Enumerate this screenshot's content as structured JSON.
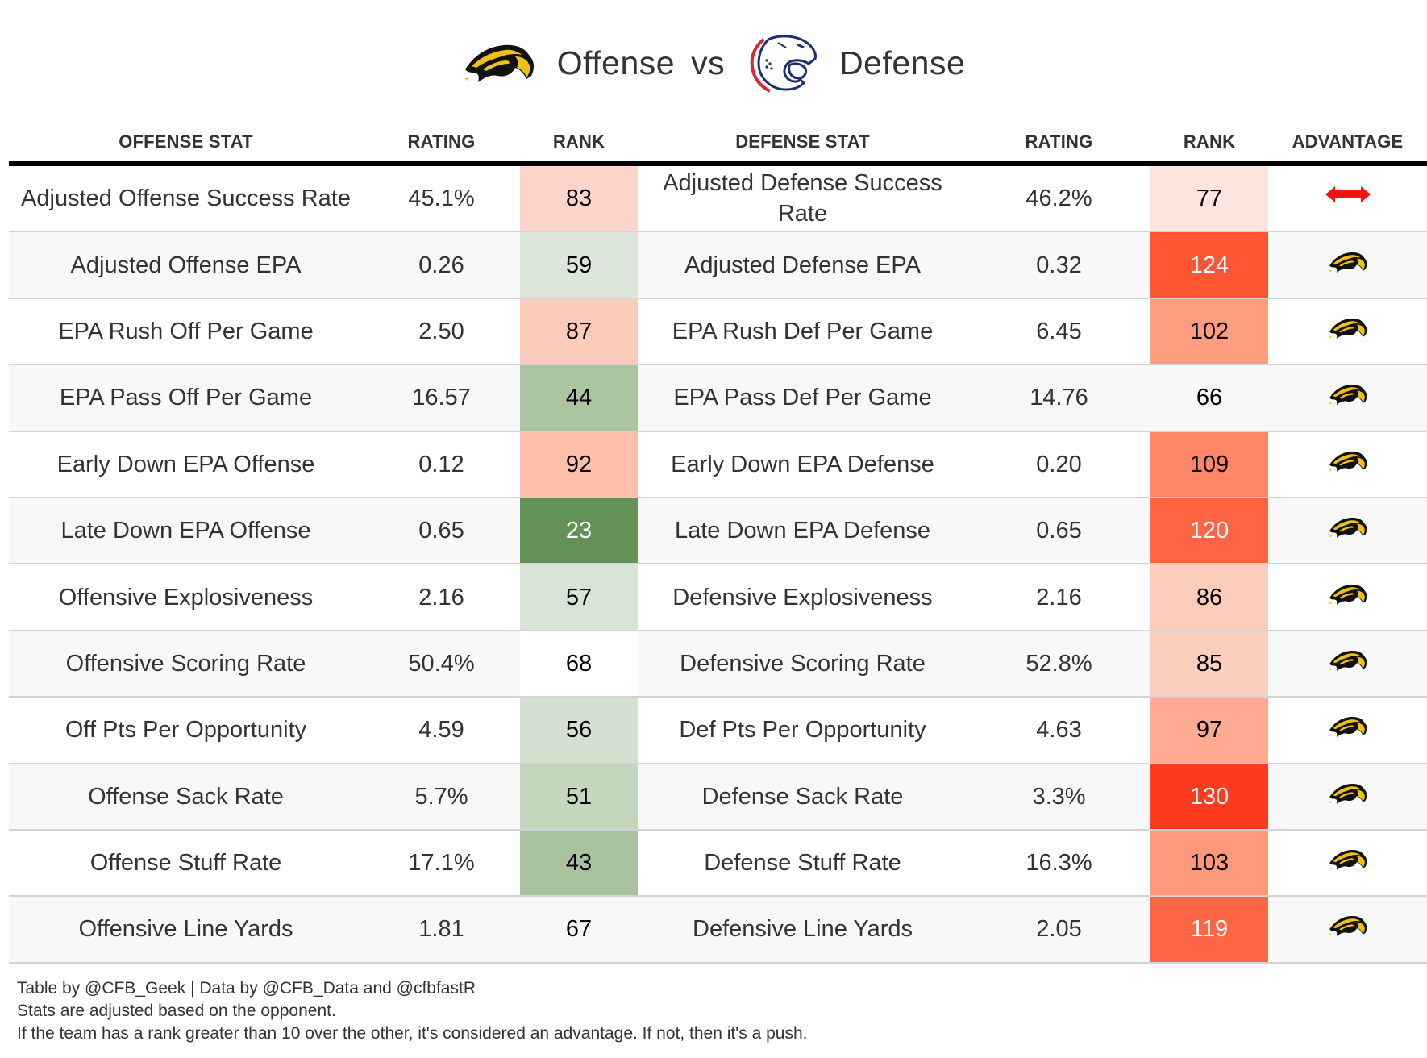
{
  "title": {
    "offense_logo": "golden-eagle-logo",
    "offense_word": "Offense",
    "vs": "vs",
    "defense_logo": "jaguar-logo",
    "defense_word": "Defense"
  },
  "columns": {
    "offense_stat": "OFFENSE STAT",
    "offense_rating": "RATING",
    "offense_rank": "RANK",
    "defense_stat": "DEFENSE STAT",
    "defense_rating": "RATING",
    "defense_rank": "RANK",
    "advantage": "ADVANTAGE"
  },
  "colors": {
    "rank_best_green": "#5f9152",
    "rank_neutral": "#ffffff",
    "rank_worst_red": "#ff3b1f",
    "push_arrow": "#ee1515",
    "eagle_gold": "#f2c010",
    "eagle_black": "#111111",
    "jaguar_red": "#d8263a",
    "jaguar_navy": "#1c2f6b"
  },
  "rows": [
    {
      "offense_stat": "Adjusted Offense Success Rate",
      "offense_rating": "45.1%",
      "offense_rank": "83",
      "offense_rank_bg": "#fdd5ca",
      "offense_rank_light": false,
      "defense_stat": "Adjusted Defense Success Rate",
      "defense_rating": "46.2%",
      "defense_rank": "77",
      "defense_rank_bg": "#fde5dd",
      "defense_rank_light": false,
      "advantage": "push"
    },
    {
      "offense_stat": "Adjusted Offense EPA",
      "offense_rating": "0.26",
      "offense_rank": "59",
      "offense_rank_bg": "#dce6da",
      "offense_rank_light": false,
      "defense_stat": "Adjusted Defense EPA",
      "defense_rating": "0.32",
      "defense_rank": "124",
      "defense_rank_bg": "#ff5533",
      "defense_rank_light": true,
      "advantage": "offense"
    },
    {
      "offense_stat": "EPA Rush Off Per Game",
      "offense_rating": "2.50",
      "offense_rank": "87",
      "offense_rank_bg": "#fdcbb9",
      "offense_rank_light": false,
      "defense_stat": "EPA Rush Def Per Game",
      "defense_rating": "6.45",
      "defense_rank": "102",
      "defense_rank_bg": "#ff9d80",
      "defense_rank_light": false,
      "advantage": "offense"
    },
    {
      "offense_stat": "EPA Pass Off Per Game",
      "offense_rating": "16.57",
      "offense_rank": "44",
      "offense_rank_bg": "#abc5a0",
      "offense_rank_light": false,
      "defense_stat": "EPA Pass Def Per Game",
      "defense_rating": "14.76",
      "defense_rank": "66",
      "defense_rank_bg": "#f6f8f5",
      "defense_rank_light": false,
      "advantage": "offense"
    },
    {
      "offense_stat": "Early Down EPA Offense",
      "offense_rating": "0.12",
      "offense_rank": "92",
      "offense_rank_bg": "#febeaa",
      "offense_rank_light": false,
      "defense_stat": "Early Down EPA Defense",
      "defense_rating": "0.20",
      "defense_rank": "109",
      "defense_rank_bg": "#ff8768",
      "defense_rank_light": false,
      "advantage": "offense"
    },
    {
      "offense_stat": "Late Down EPA Offense",
      "offense_rating": "0.65",
      "offense_rank": "23",
      "offense_rank_bg": "#629255",
      "offense_rank_light": true,
      "defense_stat": "Late Down EPA Defense",
      "defense_rating": "0.65",
      "defense_rank": "120",
      "defense_rank_bg": "#ff6443",
      "defense_rank_light": true,
      "advantage": "offense"
    },
    {
      "offense_stat": "Offensive Explosiveness",
      "offense_rating": "2.16",
      "offense_rank": "57",
      "offense_rank_bg": "#d7e3d4",
      "offense_rank_light": false,
      "defense_stat": "Defensive Explosiveness",
      "defense_rating": "2.16",
      "defense_rank": "86",
      "defense_rank_bg": "#fdcdbc",
      "defense_rank_light": false,
      "advantage": "offense"
    },
    {
      "offense_stat": "Offensive Scoring Rate",
      "offense_rating": "50.4%",
      "offense_rank": "68",
      "offense_rank_bg": "#ffffff",
      "offense_rank_light": false,
      "defense_stat": "Defensive Scoring Rate",
      "defense_rating": "52.8%",
      "defense_rank": "85",
      "defense_rank_bg": "#fdcfbf",
      "defense_rank_light": false,
      "advantage": "offense"
    },
    {
      "offense_stat": "Off Pts Per Opportunity",
      "offense_rating": "4.59",
      "offense_rank": "56",
      "offense_rank_bg": "#d4e1d0",
      "offense_rank_light": false,
      "defense_stat": "Def Pts Per Opportunity",
      "defense_rating": "4.63",
      "defense_rank": "97",
      "defense_rank_bg": "#ffab91",
      "defense_rank_light": false,
      "advantage": "offense"
    },
    {
      "offense_stat": "Offense Sack Rate",
      "offense_rating": "5.7%",
      "offense_rank": "51",
      "offense_rank_bg": "#c3d7bc",
      "offense_rank_light": false,
      "defense_stat": "Defense Sack Rate",
      "defense_rating": "3.3%",
      "defense_rank": "130",
      "defense_rank_bg": "#ff3b1f",
      "defense_rank_light": true,
      "advantage": "offense"
    },
    {
      "offense_stat": "Offense Stuff Rate",
      "offense_rating": "17.1%",
      "offense_rank": "43",
      "offense_rank_bg": "#a7c29c",
      "offense_rank_light": false,
      "defense_stat": "Defense Stuff Rate",
      "defense_rating": "16.3%",
      "defense_rank": "103",
      "defense_rank_bg": "#ff997c",
      "defense_rank_light": false,
      "advantage": "offense"
    },
    {
      "offense_stat": "Offensive Line Yards",
      "offense_rating": "1.81",
      "offense_rank": "67",
      "offense_rank_bg": "#f8f8f8",
      "offense_rank_light": false,
      "defense_stat": "Defensive Line Yards",
      "defense_rating": "2.05",
      "defense_rank": "119",
      "defense_rank_bg": "#ff6646",
      "defense_rank_light": true,
      "advantage": "offense"
    }
  ],
  "footer": {
    "line1": "Table by @CFB_Geek | Data by @CFB_Data and @cfbfastR",
    "line2": "Stats are adjusted based on the opponent.",
    "line3": "If the team has a rank greater than 10 over the other, it's considered an advantage. If not, then it's a push."
  }
}
